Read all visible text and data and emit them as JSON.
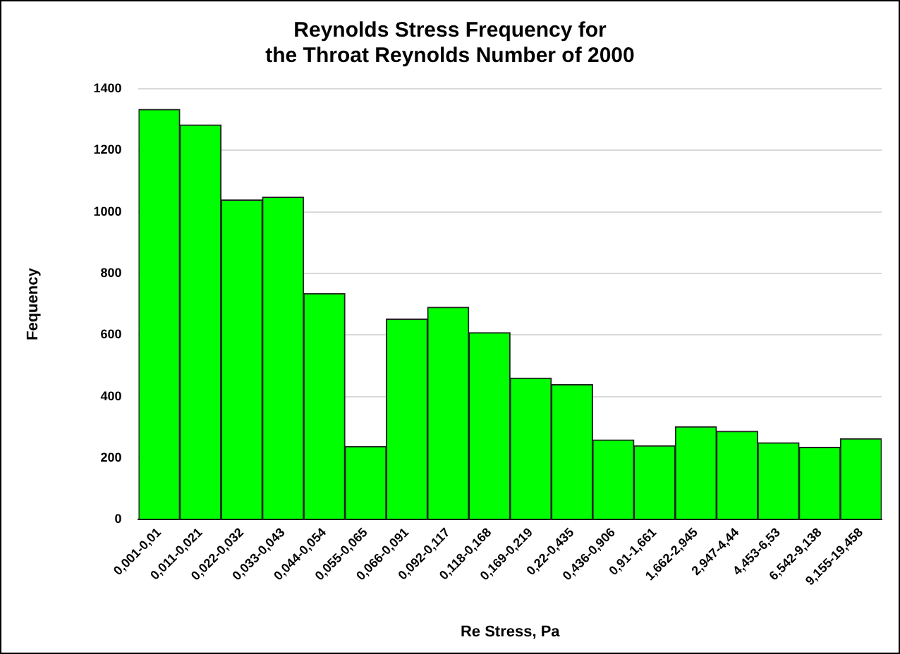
{
  "chart_data": {
    "type": "bar",
    "title": [
      "Reynolds Stress Frequency for",
      "the Throat Reynolds Number of 2000"
    ],
    "xlabel": "Re Stress, Pa",
    "ylabel": "Fequency",
    "categories": [
      "0,001-0,01",
      "0,011-0,021",
      "0,022-0,032",
      "0,033-0,043",
      "0,044-0,054",
      "0,055-0,065",
      "0,066-0,091",
      "0,092-0,117",
      "0,118-0,168",
      "0,169-0,219",
      "0,22-0,435",
      "0,436-0,906",
      "0,91-1,661",
      "1,662-2,945",
      "2,947-4,44",
      "4,453-6,53",
      "6,542-9,138",
      "9,155-19,458"
    ],
    "values": [
      1333,
      1283,
      1039,
      1048,
      735,
      238,
      652,
      690,
      608,
      460,
      439,
      259,
      240,
      302,
      287,
      250,
      235,
      263
    ],
    "color": "#00ff00",
    "ylim": [
      0,
      1400
    ],
    "yticks": [
      0,
      200,
      400,
      600,
      800,
      1000,
      1200,
      1400
    ],
    "grid": "y",
    "legend": false
  }
}
